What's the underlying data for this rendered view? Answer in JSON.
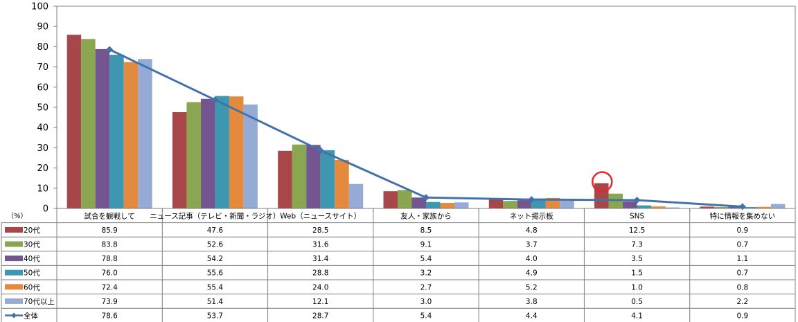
{
  "chart_data": {
    "type": "bar",
    "unit_label": "（%）",
    "ylim": [
      0,
      100
    ],
    "yticks": [
      0,
      10,
      20,
      30,
      40,
      50,
      60,
      70,
      80,
      90,
      100
    ],
    "categories": [
      "試合を観戦して",
      "ニュース記事（テレビ・新聞・ラジオ）",
      "Web（ニュースサイト）",
      "友人・家族から",
      "ネット掲示板",
      "SNS",
      "特に情報を集めない"
    ],
    "series": [
      {
        "name": "20代",
        "type": "bar",
        "color": "#a8474a",
        "values": [
          85.9,
          47.6,
          28.5,
          8.5,
          4.8,
          12.5,
          0.9
        ]
      },
      {
        "name": "30代",
        "type": "bar",
        "color": "#8ba651",
        "values": [
          83.8,
          52.6,
          31.6,
          9.1,
          3.7,
          7.3,
          0.7
        ]
      },
      {
        "name": "40代",
        "type": "bar",
        "color": "#73558f",
        "values": [
          78.8,
          54.2,
          31.4,
          5.4,
          4.0,
          3.5,
          1.1
        ]
      },
      {
        "name": "50代",
        "type": "bar",
        "color": "#3d97b0",
        "values": [
          76.0,
          55.6,
          28.8,
          3.2,
          4.9,
          1.5,
          0.7
        ]
      },
      {
        "name": "60代",
        "type": "bar",
        "color": "#e38a3e",
        "values": [
          72.4,
          55.4,
          24.0,
          2.7,
          5.2,
          1.0,
          0.8
        ]
      },
      {
        "name": "70代以上",
        "type": "bar",
        "color": "#95abd6",
        "values": [
          73.9,
          51.4,
          12.1,
          3.0,
          3.8,
          0.5,
          2.2
        ]
      },
      {
        "name": "全体",
        "type": "line",
        "color": "#4472a8",
        "values": [
          78.6,
          53.7,
          28.7,
          5.4,
          4.4,
          4.1,
          0.9
        ]
      }
    ],
    "annotations": [
      {
        "type": "circle",
        "category": "SNS",
        "series": "20代",
        "color": "#e8262b"
      }
    ],
    "grid": false,
    "legend": "table-left"
  }
}
